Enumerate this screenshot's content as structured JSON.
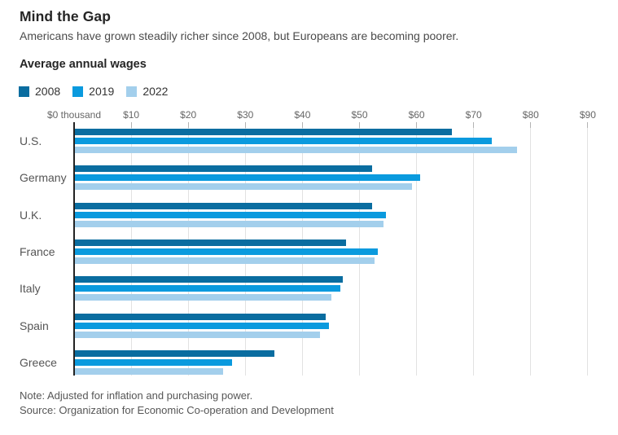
{
  "header": {
    "title": "Mind the Gap",
    "subtitle": "Americans have grown steadily richer since 2008, but Europeans are becoming poorer."
  },
  "chart": {
    "label": "Average annual wages",
    "note": "Note: Adjusted for inflation and purchasing power.",
    "source": "Source: Organization for Economic Co-operation and Development"
  },
  "colors": {
    "series_2008": "#0a6da0",
    "series_2019": "#0a9ade",
    "series_2022": "#a3cfec",
    "axis_line": "#222222",
    "gridline": "#e2e2e2",
    "tick_label": "#666666"
  },
  "chart_data": {
    "type": "bar",
    "orientation": "horizontal",
    "title": "Average annual wages",
    "unit": "thousand USD, inflation and PPP adjusted",
    "categories": [
      "U.S.",
      "Germany",
      "U.K.",
      "France",
      "Italy",
      "Spain",
      "Greece"
    ],
    "series": [
      {
        "name": "2008",
        "color": "#0a6da0",
        "values": [
          66,
          52,
          52,
          47.5,
          47,
          44,
          35
        ]
      },
      {
        "name": "2019",
        "color": "#0a9ade",
        "values": [
          73,
          60.5,
          54.5,
          53,
          46.5,
          44.5,
          27.5
        ]
      },
      {
        "name": "2022",
        "color": "#a3cfec",
        "values": [
          77.5,
          59,
          54,
          52.5,
          45,
          43,
          26
        ]
      }
    ],
    "x_axis": {
      "min": 0,
      "max": 90,
      "tick_step": 10,
      "ticks": [
        "$0 thousand",
        "$10",
        "$20",
        "$30",
        "$40",
        "$50",
        "$60",
        "$70",
        "$80",
        "$90"
      ]
    },
    "legend_position": "top-left",
    "grid": "vertical"
  }
}
